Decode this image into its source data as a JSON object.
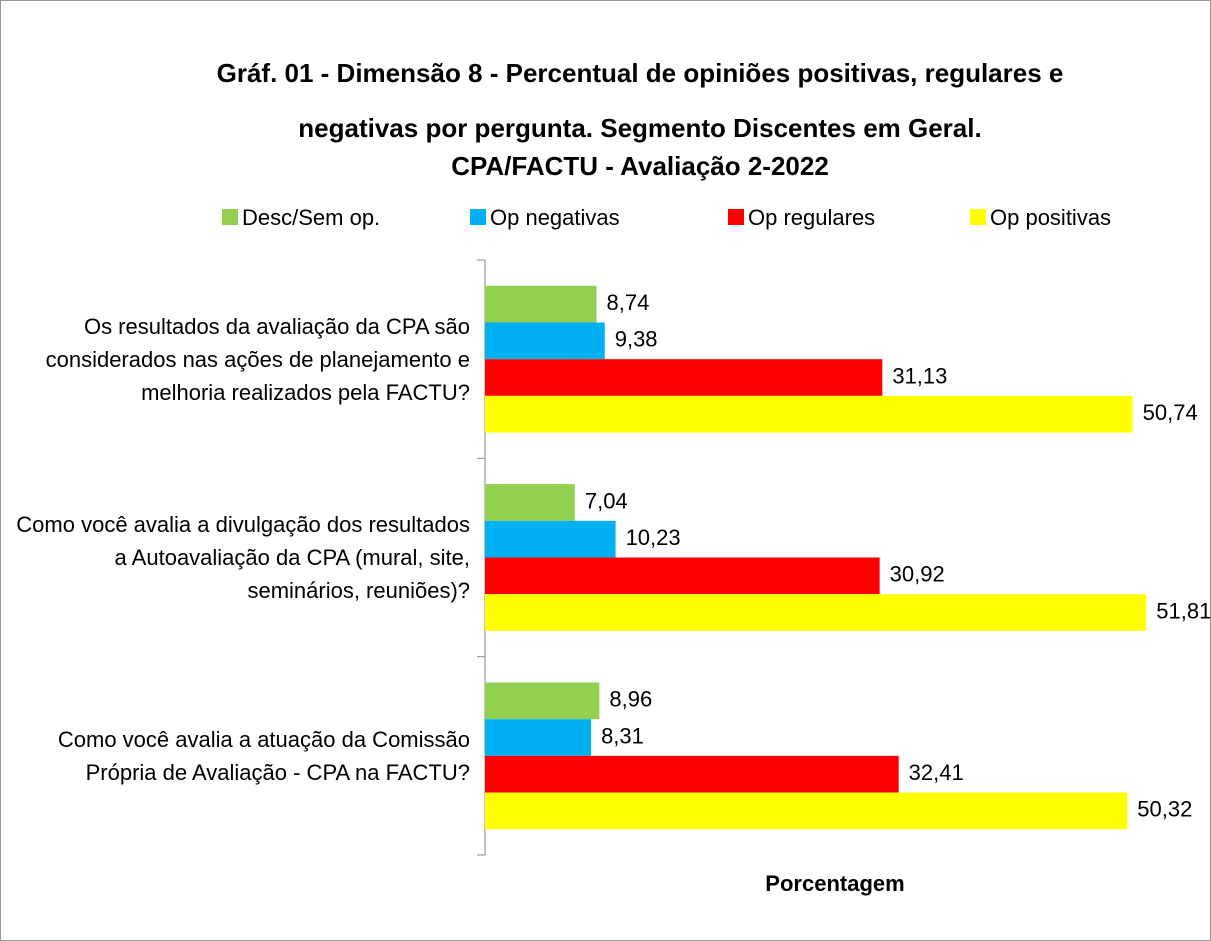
{
  "chart_data": {
    "type": "bar",
    "orientation": "horizontal",
    "title": [
      "Gráf. 01 - Dimensão 8 - Percentual de opiniões positivas, regulares e",
      "negativas por pergunta. Segmento Discentes em Geral.",
      "CPA/FACTU  - Avaliação  2-2022"
    ],
    "x_label": "Porcentagem",
    "categories": [
      "Os resultados da avaliação da CPA são considerados nas ações de planejamento e melhoria realizados pela FACTU?",
      "Como você avalia a divulgação dos resultados a Autoavaliação da CPA (mural, site, seminários, reuniões)?",
      "Como você avalia a atuação da Comissão Própria de Avaliação - CPA na FACTU?"
    ],
    "series": [
      {
        "name": "Desc/Sem op.",
        "color": "#92d050",
        "values": [
          8.74,
          7.04,
          8.96
        ],
        "value_labels": [
          "8,74",
          "7,04",
          "8,96"
        ]
      },
      {
        "name": "Op negativas",
        "color": "#00b0f0",
        "values": [
          9.38,
          10.23,
          8.31
        ],
        "value_labels": [
          "9,38",
          "10,23",
          "8,31"
        ]
      },
      {
        "name": "Op regulares",
        "color": "#ff0000",
        "values": [
          31.13,
          30.92,
          32.41
        ],
        "value_labels": [
          "31,13",
          "30,92",
          "32,41"
        ]
      },
      {
        "name": "Op positivas",
        "color": "#ffff00",
        "values": [
          50.74,
          51.81,
          50.32
        ],
        "value_labels": [
          "50,74",
          "51,81",
          "50,32"
        ]
      }
    ],
    "xlim": [
      0,
      55
    ],
    "legend": "top"
  }
}
